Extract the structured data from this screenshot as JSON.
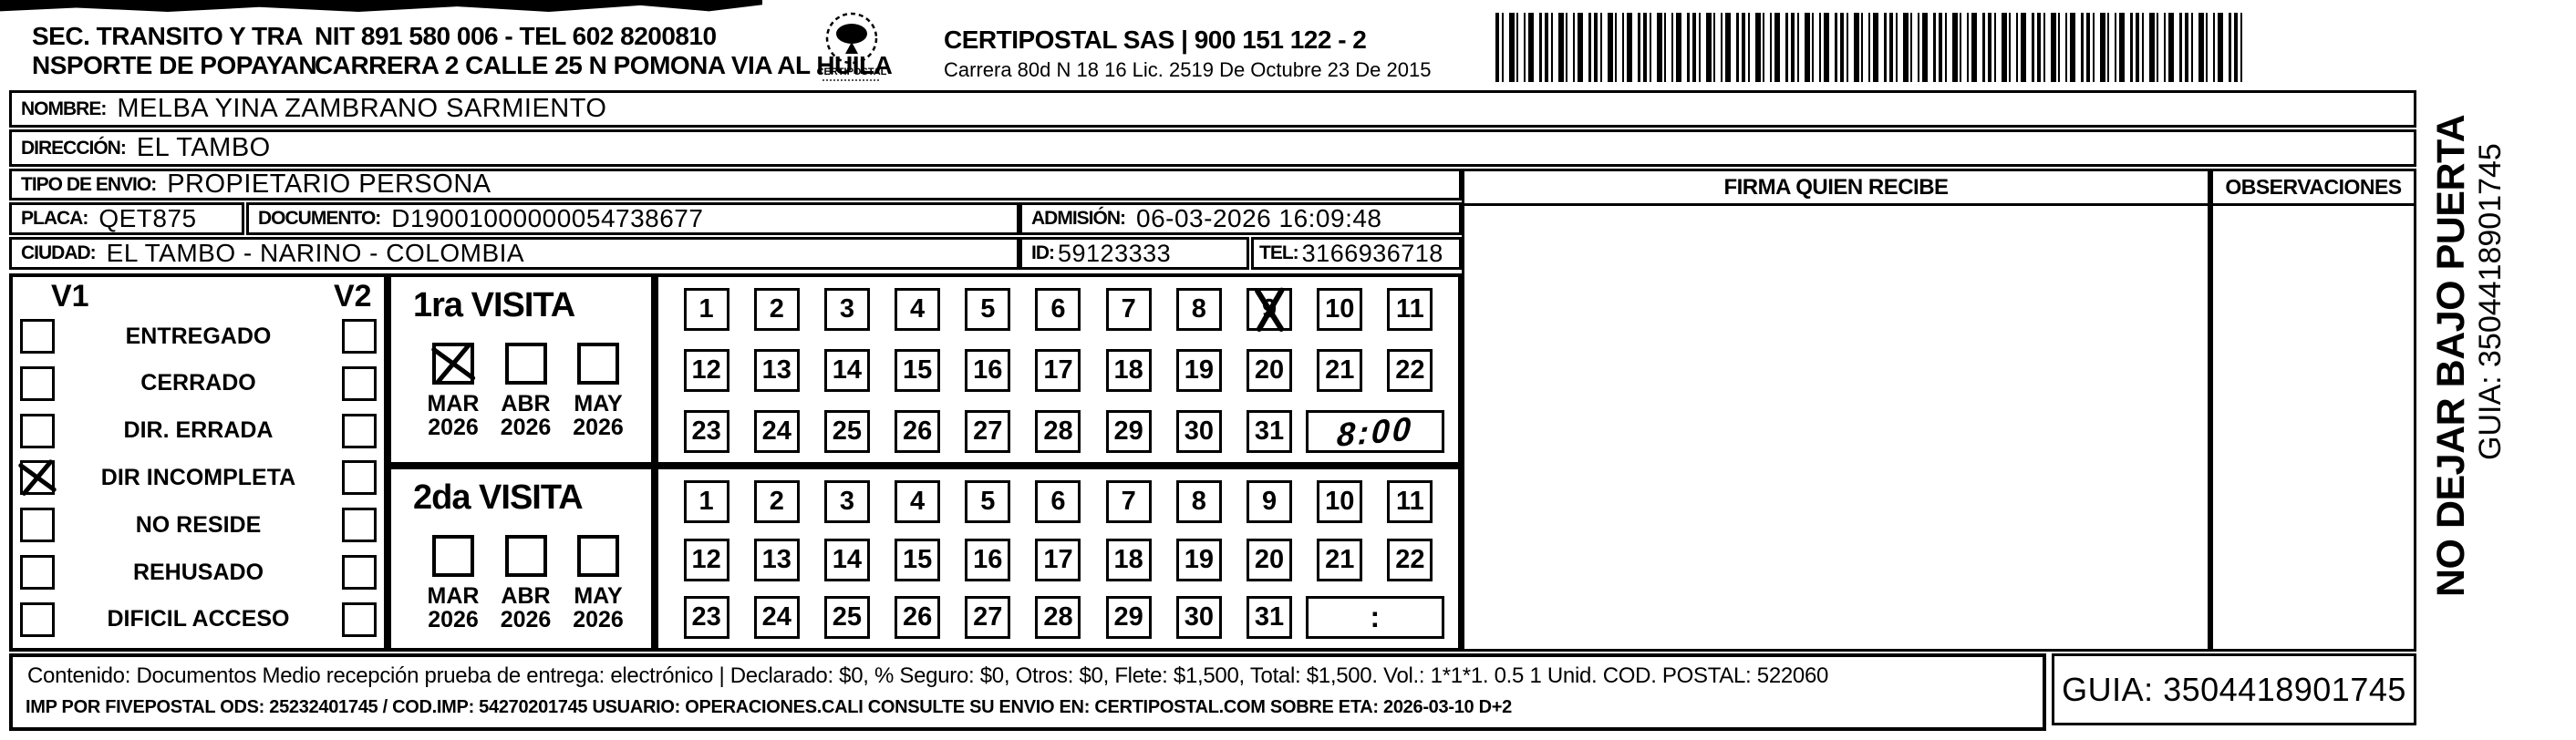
{
  "header": {
    "sender_line1": "SEC. TRANSITO Y TRA",
    "sender_line2": "NSPORTE DE POPAYAN",
    "nit_tel": "NIT 891 580 006 - TEL 602 8200810",
    "sender_address": "CARRERA 2 CALLE 25 N POMONA VIA AL HUILA",
    "logo_caption": "CERTIPOSTAL",
    "company": "CERTIPOSTAL SAS | 900 151 122 - 2",
    "company_address": "Carrera 80d N 18 16  Lic. 2519 De Octubre 23 De 2015"
  },
  "fields": {
    "nombre_label": "NOMBRE:",
    "nombre": "MELBA YINA ZAMBRANO SARMIENTO",
    "direccion_label": "DIRECCIÓN:",
    "direccion": "EL TAMBO",
    "tipo_envio_label": "TIPO DE ENVIO:",
    "tipo_envio": "PROPIETARIO PERSONA",
    "placa_label": "PLACA:",
    "placa": "QET875",
    "documento_label": "DOCUMENTO:",
    "documento": "D19001000000054738677",
    "admision_label": "ADMISIÓN:",
    "admision": "06-03-2026 16:09:48",
    "ciudad_label": "CIUDAD:",
    "ciudad": "EL TAMBO - NARINO - COLOMBIA",
    "id_label": "ID:",
    "id": "59123333",
    "tel_label": "TEL:",
    "tel": "3166936718"
  },
  "columns": {
    "firma_header": "FIRMA QUIEN RECIBE",
    "observaciones_header": "OBSERVACIONES"
  },
  "status": {
    "v1_header": "V1",
    "v2_header": "V2",
    "options": [
      {
        "label": "ENTREGADO",
        "v1_checked": false,
        "v2_checked": false
      },
      {
        "label": "CERRADO",
        "v1_checked": false,
        "v2_checked": false
      },
      {
        "label": "DIR. ERRADA",
        "v1_checked": false,
        "v2_checked": false
      },
      {
        "label": "DIR INCOMPLETA",
        "v1_checked": true,
        "v2_checked": false
      },
      {
        "label": "NO RESIDE",
        "v1_checked": false,
        "v2_checked": false
      },
      {
        "label": "REHUSADO",
        "v1_checked": false,
        "v2_checked": false
      },
      {
        "label": "DIFICIL ACCESO",
        "v1_checked": false,
        "v2_checked": false
      }
    ]
  },
  "calendar": {
    "days": [
      1,
      2,
      3,
      4,
      5,
      6,
      7,
      8,
      9,
      10,
      11,
      12,
      13,
      14,
      15,
      16,
      17,
      18,
      19,
      20,
      21,
      22,
      23,
      24,
      25,
      26,
      27,
      28,
      29,
      30,
      31
    ]
  },
  "visits": [
    {
      "title": "1ra VISITA",
      "months": [
        {
          "label": "MAR",
          "year": "2026",
          "checked": true
        },
        {
          "label": "ABR",
          "year": "2026",
          "checked": false
        },
        {
          "label": "MAY",
          "year": "2026",
          "checked": false
        }
      ],
      "marked_day": 9,
      "time_note": "8:00",
      "time_handwritten": true
    },
    {
      "title": "2da VISITA",
      "months": [
        {
          "label": "MAR",
          "year": "2026",
          "checked": false
        },
        {
          "label": "ABR",
          "year": "2026",
          "checked": false
        },
        {
          "label": "MAY",
          "year": "2026",
          "checked": false
        }
      ],
      "marked_day": null,
      "time_note": ":",
      "time_handwritten": false
    }
  ],
  "footer": {
    "line1": "Contenido: Documentos Medio recepción prueba de entrega: electrónico | Declarado: $0, % Seguro: $0, Otros: $0, Flete: $1,500, Total: $1,500. Vol.: 1*1*1. 0.5  1 Unid. COD. POSTAL: 522060",
    "line2": "IMP POR FIVEPOSTAL ODS: 25232401745 / COD.IMP: 54270201745 USUARIO: OPERACIONES.CALI CONSULTE SU ENVIO EN: CERTIPOSTAL.COM SOBRE ETA: 2026-03-10 D+2",
    "guia": "GUIA: 3504418901745"
  },
  "side": {
    "warning": "NO DEJAR BAJO PUERTA",
    "guia": "GUIA: 3504418901745"
  }
}
